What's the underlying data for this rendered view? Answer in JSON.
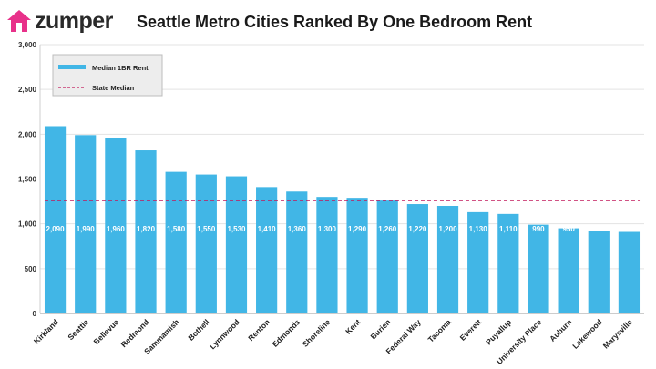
{
  "brand": {
    "name": "zumper",
    "logo_color": "#e8318a"
  },
  "chart_data": {
    "type": "bar",
    "title": "Seattle Metro Cities Ranked By One Bedroom Rent",
    "categories": [
      "Kirkland",
      "Seattle",
      "Bellevue",
      "Redmond",
      "Sammamish",
      "Bothell",
      "Lynnwood",
      "Renton",
      "Edmonds",
      "Shoreline",
      "Kent",
      "Burien",
      "Federal Way",
      "Tacoma",
      "Everett",
      "Puyallup",
      "University Place",
      "Auburn",
      "Lakewood",
      "Marysville"
    ],
    "series": [
      {
        "name": "Median 1BR Rent",
        "color": "#41b6e6",
        "values": [
          2090,
          1990,
          1960,
          1820,
          1580,
          1550,
          1530,
          1410,
          1360,
          1300,
          1290,
          1260,
          1220,
          1200,
          1130,
          1110,
          990,
          950,
          920,
          910
        ],
        "labels": [
          "2,090",
          "1,990",
          "1,960",
          "1,820",
          "1,580",
          "1,550",
          "1,530",
          "1,410",
          "1,360",
          "1,300",
          "1,290",
          "1,260",
          "1,220",
          "1,200",
          "1,130",
          "1,110",
          "990",
          "950",
          "920",
          "910"
        ]
      }
    ],
    "reference_line": {
      "name": "State Median",
      "value": 1260,
      "color": "#c2185b",
      "style": "dashed"
    },
    "ylim": [
      0,
      3000
    ],
    "yticks": [
      0,
      500,
      1000,
      1500,
      2000,
      2500,
      3000
    ],
    "ytick_labels": [
      "0",
      "500",
      "1,000",
      "1,500",
      "2,000",
      "2,500",
      "3,000"
    ],
    "grid": true,
    "legend_position": "top-left",
    "xlabel": "",
    "ylabel": ""
  }
}
